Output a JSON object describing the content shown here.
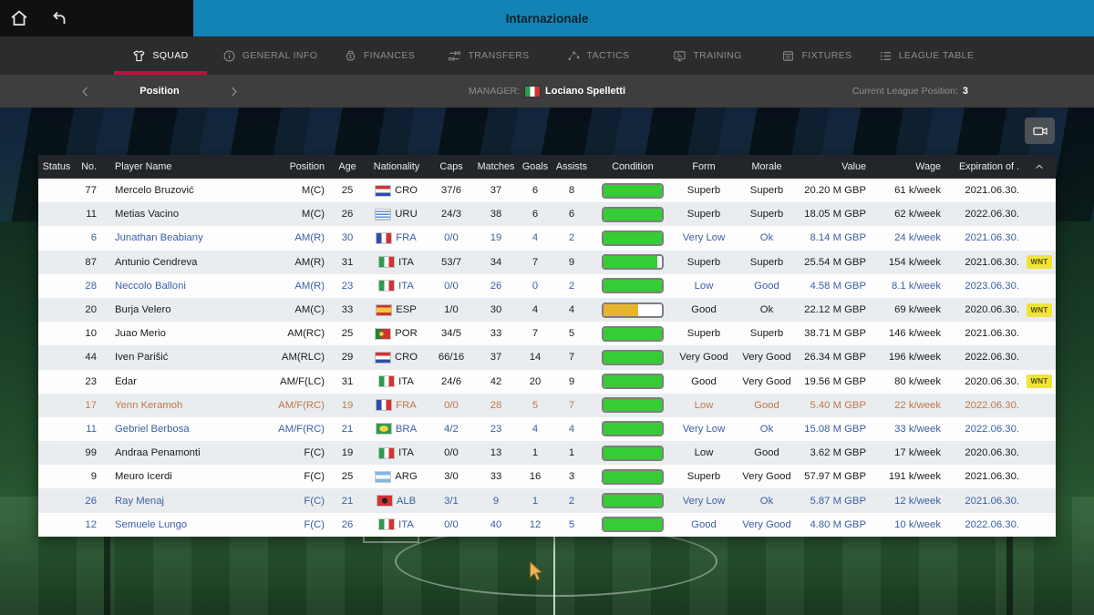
{
  "topbar": {
    "title": "Intarnazionale"
  },
  "nav": {
    "tabs": [
      {
        "label": "SQUAD",
        "icon": "shirt",
        "active": true
      },
      {
        "label": "GENERAL INFO",
        "icon": "info",
        "active": false
      },
      {
        "label": "FINANCES",
        "icon": "money-bag",
        "active": false
      },
      {
        "label": "TRANSFERS",
        "icon": "transfer",
        "active": false
      },
      {
        "label": "TACTICS",
        "icon": "tactics",
        "active": false
      },
      {
        "label": "TRAINING",
        "icon": "training",
        "active": false
      },
      {
        "label": "FIXTURES",
        "icon": "fixtures",
        "active": false
      },
      {
        "label": "LEAGUE TABLE",
        "icon": "league-table",
        "active": false
      }
    ]
  },
  "subheader": {
    "pager_label": "Position",
    "manager_label": "MANAGER:",
    "manager_flag": "ITA",
    "manager_name": "Lociano Spelletti",
    "league_position_label": "Current League Position:",
    "league_position_value": "3"
  },
  "table": {
    "columns": [
      "Status",
      "No.",
      "Player Name",
      "Position",
      "Age",
      "Nationality",
      "Caps",
      "Matches",
      "Goals",
      "Assists",
      "Condition",
      "Form",
      "Morale",
      "Value",
      "Wage",
      "Expiration of ."
    ],
    "rows": [
      {
        "status": "",
        "no": "77",
        "name": "Mercelo Bruzović",
        "position": "M(C)",
        "age": "25",
        "nationality": "CRO",
        "caps": "37/6",
        "matches": "37",
        "goals": "6",
        "assists": "8",
        "condition_pct": 100,
        "condition_color": "green",
        "form": "Superb",
        "morale": "Superb",
        "value": "20.20 M GBP",
        "wage": "61 k/week",
        "expiration": "2021.06.30.",
        "text_tone": "dark",
        "badge": ""
      },
      {
        "status": "",
        "no": "11",
        "name": "Metias Vacino",
        "position": "M(C)",
        "age": "26",
        "nationality": "URU",
        "caps": "24/3",
        "matches": "38",
        "goals": "6",
        "assists": "6",
        "condition_pct": 100,
        "condition_color": "green",
        "form": "Superb",
        "morale": "Superb",
        "value": "18.05 M GBP",
        "wage": "62 k/week",
        "expiration": "2022.06.30.",
        "text_tone": "dark",
        "badge": ""
      },
      {
        "status": "",
        "no": "6",
        "name": "Junathan Beabiany",
        "position": "AM(R)",
        "age": "30",
        "nationality": "FRA",
        "caps": "0/0",
        "matches": "19",
        "goals": "4",
        "assists": "2",
        "condition_pct": 100,
        "condition_color": "green",
        "form": "Very Low",
        "morale": "Ok",
        "value": "8.14 M GBP",
        "wage": "24 k/week",
        "expiration": "2021.06.30.",
        "text_tone": "blue",
        "badge": ""
      },
      {
        "status": "",
        "no": "87",
        "name": "Antunio Cendreva",
        "position": "AM(R)",
        "age": "31",
        "nationality": "ITA",
        "caps": "53/7",
        "matches": "34",
        "goals": "7",
        "assists": "9",
        "condition_pct": 92,
        "condition_color": "green",
        "form": "Superb",
        "morale": "Superb",
        "value": "25.54 M GBP",
        "wage": "154 k/week",
        "expiration": "2021.06.30.",
        "text_tone": "dark",
        "badge": "WNT"
      },
      {
        "status": "",
        "no": "28",
        "name": "Neccolo Balloni",
        "position": "AM(R)",
        "age": "23",
        "nationality": "ITA",
        "caps": "0/0",
        "matches": "26",
        "goals": "0",
        "assists": "2",
        "condition_pct": 100,
        "condition_color": "green",
        "form": "Low",
        "morale": "Good",
        "value": "4.58 M GBP",
        "wage": "8.1 k/week",
        "expiration": "2023.06.30.",
        "text_tone": "blue",
        "badge": ""
      },
      {
        "status": "",
        "no": "20",
        "name": "Burja Velero",
        "position": "AM(C)",
        "age": "33",
        "nationality": "ESP",
        "caps": "1/0",
        "matches": "30",
        "goals": "4",
        "assists": "4",
        "condition_pct": 60,
        "condition_color": "orange",
        "form": "Good",
        "morale": "Ok",
        "value": "22.12 M GBP",
        "wage": "69 k/week",
        "expiration": "2020.06.30.",
        "text_tone": "dark",
        "badge": "WNT"
      },
      {
        "status": "",
        "no": "10",
        "name": "Juao Merio",
        "position": "AM(RC)",
        "age": "25",
        "nationality": "POR",
        "caps": "34/5",
        "matches": "33",
        "goals": "7",
        "assists": "5",
        "condition_pct": 100,
        "condition_color": "green",
        "form": "Superb",
        "morale": "Superb",
        "value": "38.71 M GBP",
        "wage": "146 k/week",
        "expiration": "2021.06.30.",
        "text_tone": "dark",
        "badge": ""
      },
      {
        "status": "",
        "no": "44",
        "name": "Iven Parišić",
        "position": "AM(RLC)",
        "age": "29",
        "nationality": "CRO",
        "caps": "66/16",
        "matches": "37",
        "goals": "14",
        "assists": "7",
        "condition_pct": 100,
        "condition_color": "green",
        "form": "Very Good",
        "morale": "Very Good",
        "value": "26.34 M GBP",
        "wage": "196 k/week",
        "expiration": "2022.06.30.",
        "text_tone": "dark",
        "badge": ""
      },
      {
        "status": "",
        "no": "23",
        "name": "Édar",
        "position": "AM/F(LC)",
        "age": "31",
        "nationality": "ITA",
        "caps": "24/6",
        "matches": "42",
        "goals": "20",
        "assists": "9",
        "condition_pct": 100,
        "condition_color": "green",
        "form": "Good",
        "morale": "Very Good",
        "value": "19.56 M GBP",
        "wage": "80 k/week",
        "expiration": "2020.06.30.",
        "text_tone": "dark",
        "badge": "WNT"
      },
      {
        "status": "",
        "no": "17",
        "name": "Yenn Keramoh",
        "position": "AM/F(RC)",
        "age": "19",
        "nationality": "FRA",
        "caps": "0/0",
        "matches": "28",
        "goals": "5",
        "assists": "7",
        "condition_pct": 100,
        "condition_color": "green",
        "form": "Low",
        "morale": "Good",
        "value": "5.40 M GBP",
        "wage": "22 k/week",
        "expiration": "2022.06.30.",
        "text_tone": "orange",
        "badge": ""
      },
      {
        "status": "",
        "no": "11",
        "name": "Gebriel Berbosa",
        "position": "AM/F(RC)",
        "age": "21",
        "nationality": "BRA",
        "caps": "4/2",
        "matches": "23",
        "goals": "4",
        "assists": "4",
        "condition_pct": 100,
        "condition_color": "green",
        "form": "Very Low",
        "morale": "Ok",
        "value": "15.08 M GBP",
        "wage": "33 k/week",
        "expiration": "2022.06.30.",
        "text_tone": "blue",
        "badge": ""
      },
      {
        "status": "",
        "no": "99",
        "name": "Andraa Penamonti",
        "position": "F(C)",
        "age": "19",
        "nationality": "ITA",
        "caps": "0/0",
        "matches": "13",
        "goals": "1",
        "assists": "1",
        "condition_pct": 100,
        "condition_color": "green",
        "form": "Low",
        "morale": "Good",
        "value": "3.62 M GBP",
        "wage": "17 k/week",
        "expiration": "2020.06.30.",
        "text_tone": "dark",
        "badge": ""
      },
      {
        "status": "",
        "no": "9",
        "name": "Meuro Icerdi",
        "position": "F(C)",
        "age": "25",
        "nationality": "ARG",
        "caps": "3/0",
        "matches": "33",
        "goals": "16",
        "assists": "3",
        "condition_pct": 100,
        "condition_color": "green",
        "form": "Superb",
        "morale": "Very Good",
        "value": "57.97 M GBP",
        "wage": "191 k/week",
        "expiration": "2021.06.30.",
        "text_tone": "dark",
        "badge": ""
      },
      {
        "status": "",
        "no": "26",
        "name": "Ray Menaj",
        "position": "F(C)",
        "age": "21",
        "nationality": "ALB",
        "caps": "3/1",
        "matches": "9",
        "goals": "1",
        "assists": "2",
        "condition_pct": 100,
        "condition_color": "green",
        "form": "Very Low",
        "morale": "Ok",
        "value": "5.87 M GBP",
        "wage": "12 k/week",
        "expiration": "2021.06.30.",
        "text_tone": "blue",
        "badge": ""
      },
      {
        "status": "",
        "no": "12",
        "name": "Semuele Lungo",
        "position": "F(C)",
        "age": "26",
        "nationality": "ITA",
        "caps": "0/0",
        "matches": "40",
        "goals": "12",
        "assists": "5",
        "condition_pct": 100,
        "condition_color": "green",
        "form": "Good",
        "morale": "Very Good",
        "value": "4.80 M GBP",
        "wage": "10 k/week",
        "expiration": "2022.06.30.",
        "text_tone": "blue",
        "badge": ""
      }
    ]
  },
  "colors": {
    "topbar_blue": "#1383b5",
    "accent_red": "#c11144",
    "condition_green": "#35cc35",
    "condition_orange": "#e8b430",
    "badge_yellow": "#f0e33c",
    "row_text_blue": "#3c5fa6",
    "row_text_orange": "#c4764a"
  }
}
